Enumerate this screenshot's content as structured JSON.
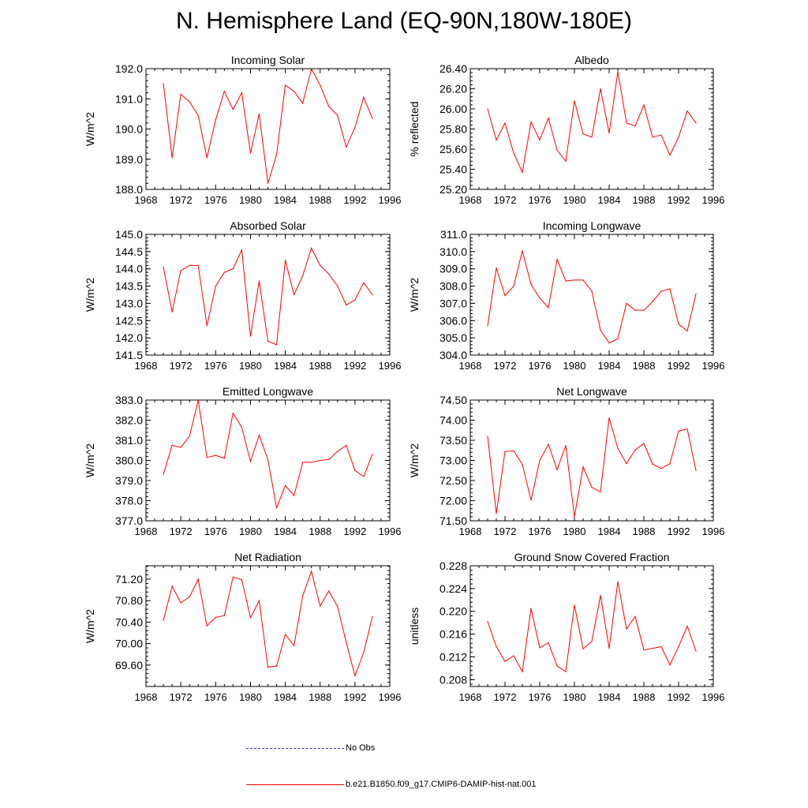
{
  "title": "N. Hemisphere Land (EQ-90N,180W-180E)",
  "colors": {
    "model_line": "#ff0000",
    "obs_line": "#3c3cc8",
    "axis": "#000000"
  },
  "legend": [
    {
      "label": "No Obs",
      "style": "dashed",
      "color": "#3c3cc8"
    },
    {
      "label": "b.e21.B1850.f09_g17.CMIP6-DAMIP-hist-nat.001",
      "style": "solid",
      "color": "#ff0000"
    }
  ],
  "chart_data": [
    {
      "type": "line",
      "title": "Incoming Solar",
      "ylabel": "W/m^2",
      "xlim": [
        1968,
        1996
      ],
      "xticks": [
        "1968",
        "1972",
        "1976",
        "1980",
        "1984",
        "1988",
        "1992",
        "1996"
      ],
      "ylim": [
        188.0,
        192.0
      ],
      "yticks": [
        "188.0",
        "189.0",
        "190.0",
        "191.0",
        "192.0"
      ],
      "series": [
        {
          "x": [
            1970,
            1971,
            1972,
            1973,
            1974,
            1975,
            1976,
            1977,
            1978,
            1979,
            1980,
            1981,
            1982,
            1983,
            1984,
            1985,
            1986,
            1987,
            1988,
            1989,
            1990,
            1991,
            1992,
            1993,
            1994
          ],
          "values": [
            191.5,
            189.05,
            191.15,
            190.9,
            190.45,
            189.05,
            190.3,
            191.25,
            190.65,
            191.2,
            189.2,
            190.5,
            188.2,
            189.15,
            191.45,
            191.25,
            190.85,
            192.0,
            191.45,
            190.75,
            190.45,
            189.4,
            190.05,
            191.05,
            190.35
          ]
        }
      ]
    },
    {
      "type": "line",
      "title": "Albedo",
      "ylabel": "% reflected",
      "xlim": [
        1968,
        1996
      ],
      "xticks": [
        "1968",
        "1972",
        "1976",
        "1980",
        "1984",
        "1988",
        "1992",
        "1996"
      ],
      "ylim": [
        25.2,
        26.4
      ],
      "yticks": [
        "25.20",
        "25.40",
        "25.60",
        "25.80",
        "26.00",
        "26.20",
        "26.40"
      ],
      "series": [
        {
          "x": [
            1970,
            1971,
            1972,
            1973,
            1974,
            1975,
            1976,
            1977,
            1978,
            1979,
            1980,
            1981,
            1982,
            1983,
            1984,
            1985,
            1986,
            1987,
            1988,
            1989,
            1990,
            1991,
            1992,
            1993,
            1994
          ],
          "values": [
            26.0,
            25.69,
            25.86,
            25.56,
            25.37,
            25.87,
            25.69,
            25.91,
            25.59,
            25.48,
            26.08,
            25.75,
            25.72,
            26.2,
            25.76,
            26.37,
            25.86,
            25.83,
            26.04,
            25.72,
            25.74,
            25.54,
            25.72,
            25.98,
            25.86
          ]
        }
      ]
    },
    {
      "type": "line",
      "title": "Absorbed Solar",
      "ylabel": "W/m^2",
      "xlim": [
        1968,
        1996
      ],
      "xticks": [
        "1968",
        "1972",
        "1976",
        "1980",
        "1984",
        "1988",
        "1992",
        "1996"
      ],
      "ylim": [
        141.5,
        145.0
      ],
      "yticks": [
        "141.5",
        "142.0",
        "142.5",
        "143.0",
        "143.5",
        "144.0",
        "144.5",
        "145.0"
      ],
      "series": [
        {
          "x": [
            1970,
            1971,
            1972,
            1973,
            1974,
            1975,
            1976,
            1977,
            1978,
            1979,
            1980,
            1981,
            1982,
            1983,
            1984,
            1985,
            1986,
            1987,
            1988,
            1989,
            1990,
            1991,
            1992,
            1993,
            1994
          ],
          "values": [
            144.05,
            142.75,
            143.95,
            144.1,
            144.1,
            142.35,
            143.5,
            143.9,
            144.0,
            144.55,
            142.05,
            143.65,
            141.9,
            141.8,
            144.25,
            143.25,
            143.8,
            144.6,
            144.1,
            143.85,
            143.5,
            142.95,
            143.1,
            143.6,
            143.25
          ]
        }
      ]
    },
    {
      "type": "line",
      "title": "Incoming Longwave",
      "ylabel": "W/m^2",
      "xlim": [
        1968,
        1996
      ],
      "xticks": [
        "1968",
        "1972",
        "1976",
        "1980",
        "1984",
        "1988",
        "1992",
        "1996"
      ],
      "ylim": [
        304.0,
        311.0
      ],
      "yticks": [
        "304.0",
        "305.0",
        "306.0",
        "307.0",
        "308.0",
        "309.0",
        "310.0",
        "311.0"
      ],
      "series": [
        {
          "x": [
            1970,
            1971,
            1972,
            1973,
            1974,
            1975,
            1976,
            1977,
            1978,
            1979,
            1980,
            1981,
            1982,
            1983,
            1984,
            1985,
            1986,
            1987,
            1988,
            1989,
            1990,
            1991,
            1992,
            1993,
            1994
          ],
          "values": [
            305.7,
            309.05,
            307.45,
            308.0,
            310.05,
            308.1,
            307.3,
            306.75,
            309.55,
            308.3,
            308.35,
            308.35,
            307.7,
            305.45,
            304.7,
            304.95,
            307.0,
            306.6,
            306.6,
            307.1,
            307.7,
            307.85,
            305.8,
            305.4,
            307.55
          ]
        }
      ]
    },
    {
      "type": "line",
      "title": "Emitted Longwave",
      "ylabel": "W/m^2",
      "xlim": [
        1968,
        1996
      ],
      "xticks": [
        "1968",
        "1972",
        "1976",
        "1980",
        "1984",
        "1988",
        "1992",
        "1996"
      ],
      "ylim": [
        377.0,
        383.0
      ],
      "yticks": [
        "377.0",
        "378.0",
        "379.0",
        "380.0",
        "381.0",
        "382.0",
        "383.0"
      ],
      "series": [
        {
          "x": [
            1970,
            1971,
            1972,
            1973,
            1974,
            1975,
            1976,
            1977,
            1978,
            1979,
            1980,
            1981,
            1982,
            1983,
            1984,
            1985,
            1986,
            1987,
            1988,
            1989,
            1990,
            1991,
            1992,
            1993,
            1994
          ],
          "values": [
            379.3,
            380.75,
            380.65,
            381.2,
            383.0,
            380.15,
            380.25,
            380.1,
            382.35,
            381.65,
            379.95,
            381.25,
            380.05,
            377.65,
            378.75,
            378.25,
            379.9,
            379.9,
            380.0,
            380.05,
            380.45,
            380.75,
            379.5,
            379.2,
            380.3
          ]
        }
      ]
    },
    {
      "type": "line",
      "title": "Net Longwave",
      "ylabel": "W/m^2",
      "xlim": [
        1968,
        1996
      ],
      "xticks": [
        "1968",
        "1972",
        "1976",
        "1980",
        "1984",
        "1988",
        "1992",
        "1996"
      ],
      "ylim": [
        71.5,
        74.5
      ],
      "yticks": [
        "71.50",
        "72.00",
        "72.50",
        "73.00",
        "73.50",
        "74.00",
        "74.50"
      ],
      "series": [
        {
          "x": [
            1970,
            1971,
            1972,
            1973,
            1974,
            1975,
            1976,
            1977,
            1978,
            1979,
            1980,
            1981,
            1982,
            1983,
            1984,
            1985,
            1986,
            1987,
            1988,
            1989,
            1990,
            1991,
            1992,
            1993,
            1994
          ],
          "values": [
            73.6,
            71.68,
            73.22,
            73.24,
            72.9,
            72.01,
            73.0,
            73.4,
            72.77,
            73.37,
            71.6,
            72.84,
            72.33,
            72.22,
            74.06,
            73.3,
            72.92,
            73.26,
            73.42,
            72.91,
            72.8,
            72.92,
            73.73,
            73.78,
            72.75
          ]
        }
      ]
    },
    {
      "type": "line",
      "title": "Net Radiation",
      "ylabel": "W/m^2",
      "xlim": [
        1968,
        1996
      ],
      "xticks": [
        "1968",
        "1972",
        "1976",
        "1980",
        "1984",
        "1988",
        "1992",
        "1996"
      ],
      "ylim": [
        69.2,
        71.45
      ],
      "yticks": [
        "69.60",
        "70.00",
        "70.40",
        "70.80",
        "71.20"
      ],
      "series": [
        {
          "x": [
            1970,
            1971,
            1972,
            1973,
            1974,
            1975,
            1976,
            1977,
            1978,
            1979,
            1980,
            1981,
            1982,
            1983,
            1984,
            1985,
            1986,
            1987,
            1988,
            1989,
            1990,
            1991,
            1992,
            1993,
            1994
          ],
          "values": [
            70.43,
            71.07,
            70.76,
            70.87,
            71.2,
            70.33,
            70.49,
            70.52,
            71.24,
            71.19,
            70.48,
            70.8,
            69.56,
            69.58,
            70.17,
            69.96,
            70.89,
            71.35,
            70.7,
            70.98,
            70.69,
            70.02,
            69.4,
            69.83,
            70.5
          ]
        }
      ]
    },
    {
      "type": "line",
      "title": "Ground Snow Covered Fraction",
      "ylabel": "unitless",
      "xlim": [
        1968,
        1996
      ],
      "xticks": [
        "1968",
        "1972",
        "1976",
        "1980",
        "1984",
        "1988",
        "1992",
        "1996"
      ],
      "ylim": [
        0.2068,
        0.228
      ],
      "yticks": [
        "0.208",
        "0.212",
        "0.216",
        "0.220",
        "0.224",
        "0.228"
      ],
      "series": [
        {
          "x": [
            1970,
            1971,
            1972,
            1973,
            1974,
            1975,
            1976,
            1977,
            1978,
            1979,
            1980,
            1981,
            1982,
            1983,
            1984,
            1985,
            1986,
            1987,
            1988,
            1989,
            1990,
            1991,
            1992,
            1993,
            1994
          ],
          "values": [
            0.2182,
            0.2138,
            0.2112,
            0.2122,
            0.2094,
            0.2205,
            0.2136,
            0.2145,
            0.2104,
            0.2094,
            0.2211,
            0.2134,
            0.2147,
            0.2228,
            0.2135,
            0.2252,
            0.2169,
            0.2191,
            0.2132,
            0.2135,
            0.2138,
            0.2106,
            0.2138,
            0.2174,
            0.213
          ]
        }
      ]
    }
  ]
}
